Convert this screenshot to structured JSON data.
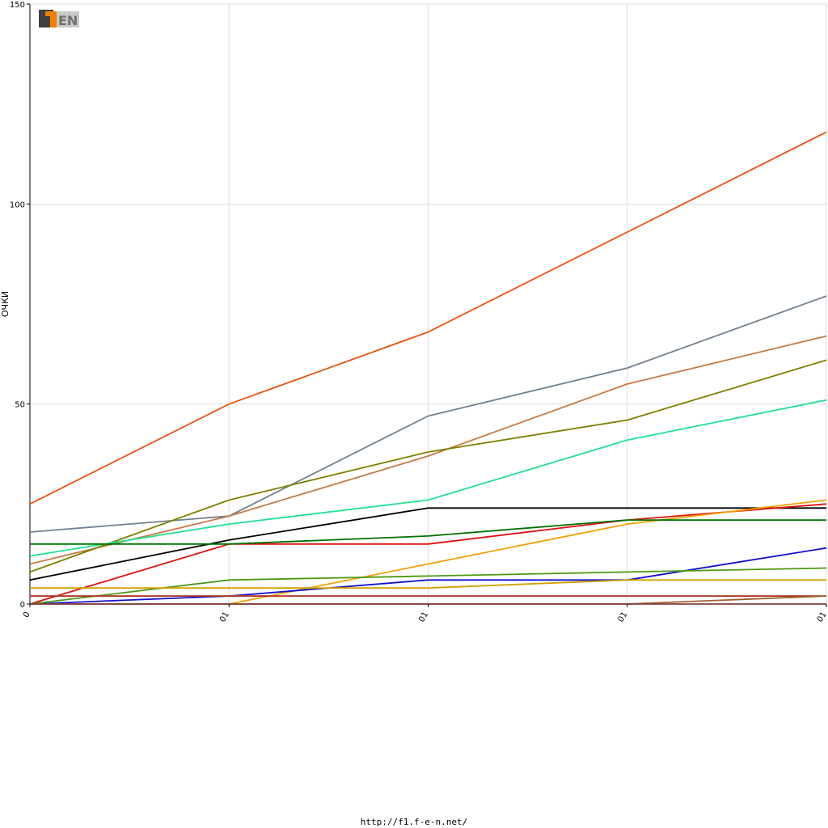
{
  "chart_data": {
    "type": "line",
    "ylabel": "ОЧКИ",
    "ylim": [
      0,
      150
    ],
    "y_ticks": [
      0,
      50,
      100,
      150
    ],
    "x_tick_labels": [
      "0",
      "01",
      "01",
      "01",
      "01"
    ],
    "grid": true,
    "logo_text": "F1EN",
    "series": [
      {
        "color": "#e8530f",
        "values": [
          25,
          50,
          68,
          93,
          118
        ]
      },
      {
        "color": "#708090",
        "values": [
          18,
          22,
          47,
          59,
          77
        ]
      },
      {
        "color": "#c87941",
        "values": [
          10,
          22,
          37,
          55,
          67
        ]
      },
      {
        "color": "#808000",
        "values": [
          8,
          26,
          38,
          46,
          61
        ]
      },
      {
        "color": "#1ee090",
        "values": [
          12,
          20,
          26,
          41,
          51
        ]
      },
      {
        "color": "#000000",
        "values": [
          6,
          16,
          24,
          24,
          24
        ]
      },
      {
        "color": "#e01010",
        "values": [
          0,
          15,
          15,
          21,
          25
        ]
      },
      {
        "color": "#f5a000",
        "values": [
          null,
          0,
          10,
          20,
          26
        ]
      },
      {
        "color": "#007000",
        "values": [
          15,
          15,
          17,
          21,
          21
        ]
      },
      {
        "color": "#1010d0",
        "values": [
          0,
          2,
          6,
          6,
          14
        ]
      },
      {
        "color": "#4a9a10",
        "values": [
          0,
          6,
          7,
          8,
          9
        ]
      },
      {
        "color": "#d4a000",
        "values": [
          4,
          4,
          4,
          6,
          6
        ]
      },
      {
        "color": "#80c8c8",
        "values": [
          2,
          2,
          2,
          2,
          2
        ]
      },
      {
        "color": "#b03020",
        "values": [
          2,
          2,
          2,
          2,
          2
        ]
      },
      {
        "color": "#a06030",
        "values": [
          0,
          0,
          0,
          0,
          2
        ]
      },
      {
        "color": "#804040",
        "values": [
          0,
          0,
          0,
          0,
          0
        ]
      }
    ]
  },
  "footer": {
    "url": "http://f1.f-e-n.net/"
  }
}
